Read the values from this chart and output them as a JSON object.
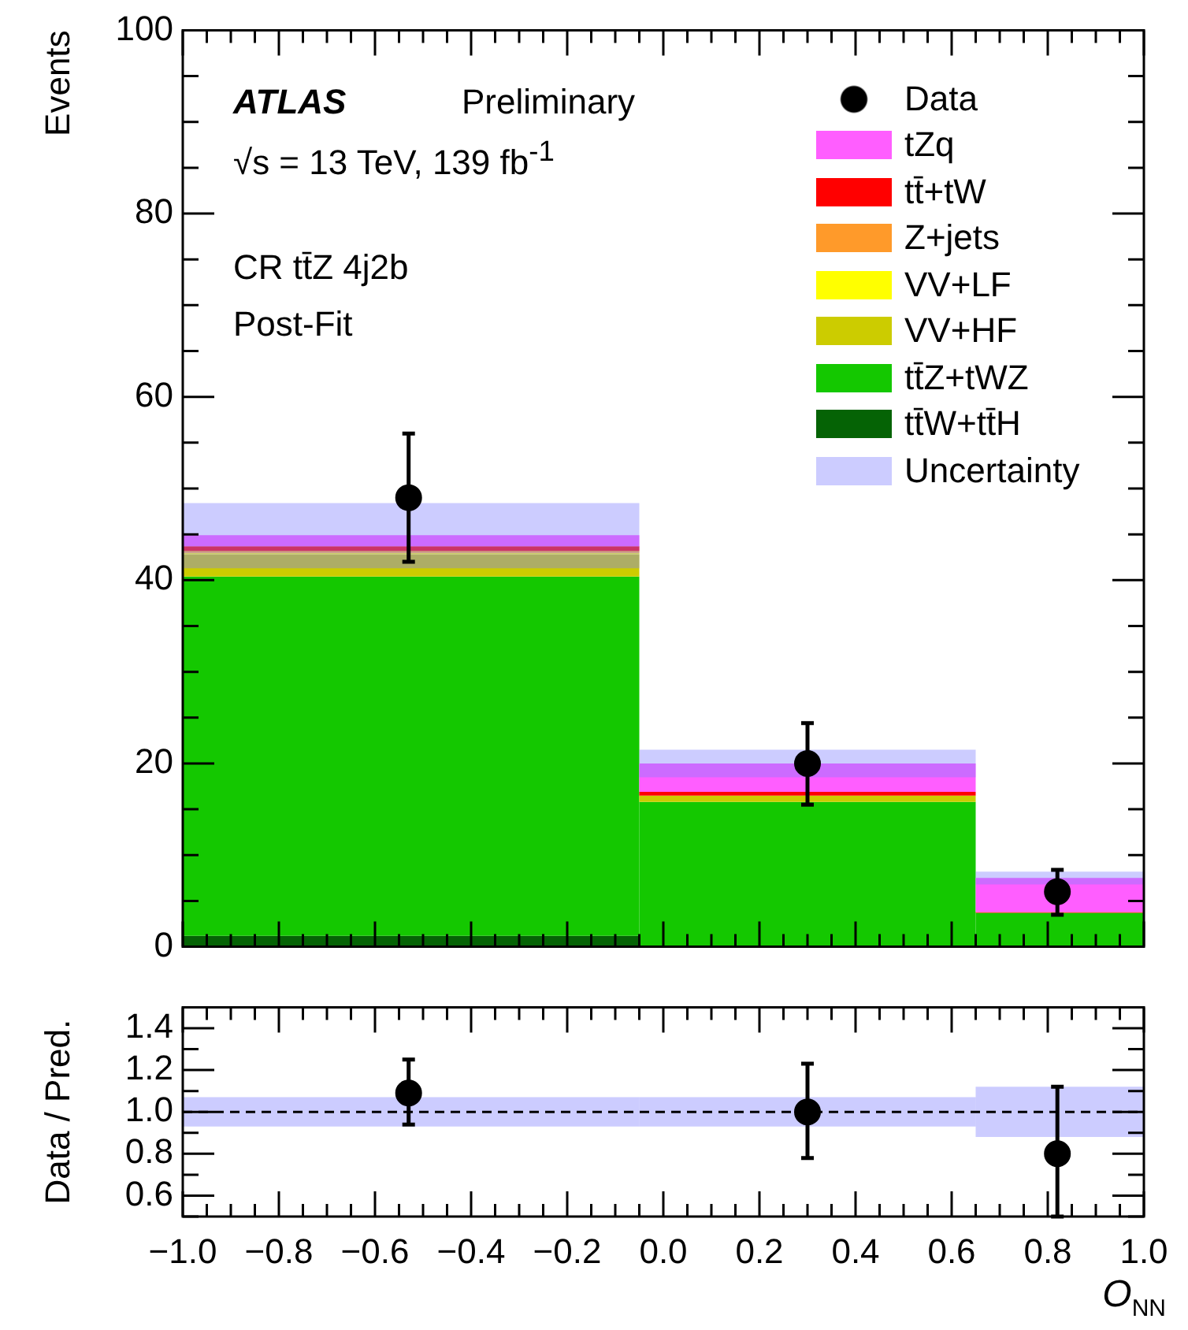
{
  "chart_data": [
    {
      "type": "histogram",
      "ylabel": "Events",
      "bins": [
        -1,
        -0.05,
        0.65,
        1.0
      ],
      "series": [
        {
          "name": "tt̄W+tt̄H",
          "color": "#056305",
          "base": [
            0,
            null,
            null
          ],
          "values": [
            1.2,
            null,
            null
          ]
        },
        {
          "name": "tt̄Z+tWZ",
          "color": "#14c800",
          "base": [
            1.2,
            0,
            0
          ],
          "values": [
            39.2,
            15.8,
            3.7
          ]
        },
        {
          "name": "VV+HF",
          "color": "#cccc00",
          "base": [
            40.4,
            15.8,
            null
          ],
          "values": [
            2.4,
            0.7,
            null
          ]
        },
        {
          "name": "VV+LF",
          "color": "#ffff00",
          "base": [
            42.8,
            null,
            null
          ],
          "values": [
            0.2,
            null,
            null
          ]
        },
        {
          "name": "Z+jets",
          "color": "#ff9a2a",
          "base": [
            43.0,
            null,
            null
          ],
          "values": [
            0.2,
            null,
            null
          ]
        },
        {
          "name": "tt̄+tW",
          "color": "#ff0000",
          "base": [
            43.2,
            16.5,
            3.7
          ],
          "values": [
            0.5,
            0.4,
            0.1
          ]
        },
        {
          "name": "tZq",
          "color": "#ff5eff",
          "base": [
            43.7,
            16.9,
            3.8
          ],
          "values": [
            1.2,
            3.1,
            3.7
          ]
        },
        {
          "name": "Uncertainty",
          "color": "#7f7fff",
          "base": [
            41.3,
            18.5,
            6.8
          ],
          "values": [
            7.1,
            3.0,
            1.4
          ]
        },
        {
          "name": "Data",
          "type": "scatter",
          "color": "#000000",
          "x": [
            -0.53,
            0.3,
            0.82
          ],
          "values": [
            49,
            20,
            6
          ],
          "errors": [
            [
              42,
              56
            ],
            [
              15.5,
              24.4
            ],
            [
              3.5,
              8.4
            ]
          ]
        }
      ],
      "xlim": [
        -1,
        1
      ],
      "xticks": [
        -1,
        -0.8,
        -0.6,
        -0.4,
        -0.2,
        0,
        0.2,
        0.4,
        0.6,
        0.8,
        1
      ],
      "ylim": [
        0,
        100
      ],
      "yticks": [
        0,
        20,
        40,
        60,
        80,
        100
      ],
      "tick_labels": "y",
      "legend": "top right",
      "grid": false,
      "annotations": [
        "ATLAS",
        "Preliminary",
        "√s = 13 TeV, 139 fb$^{-1}$",
        "CR tt̄Z 4j2b",
        "Post-Fit"
      ]
    },
    {
      "type": "histogram",
      "ylabel": "Data / Pred.",
      "xlabel": "O$_{NN}$",
      "bins": [
        -1,
        -0.05,
        0.65,
        1.0
      ],
      "series": [
        {
          "color": "#7f7fff",
          "base": [
            0.93,
            0.93,
            0.88
          ],
          "values": [
            0.14,
            0.14,
            0.24
          ]
        },
        {
          "type": "scatter",
          "color": "#000000",
          "x": [
            -0.53,
            0.3,
            0.82
          ],
          "values": [
            1.09,
            1.0,
            0.8
          ],
          "errors": [
            [
              0.94,
              1.25
            ],
            [
              0.78,
              1.23
            ],
            [
              0.5,
              1.12
            ]
          ]
        }
      ],
      "xlim": [
        -1,
        1
      ],
      "xticks": [
        {
          "value": -1,
          "label": "−1.0"
        },
        {
          "value": -0.8,
          "label": "−0.8"
        },
        {
          "value": -0.6,
          "label": "−0.6"
        },
        {
          "value": -0.4,
          "label": "−0.4"
        },
        {
          "value": -0.2,
          "label": "−0.2"
        },
        {
          "value": 0,
          "label": "0.0"
        },
        0.2,
        0.4,
        0.6,
        0.8,
        {
          "value": 1,
          "label": "1.0"
        }
      ],
      "ylim": [
        0.5,
        1.5
      ],
      "yticks": [
        0.6,
        0.8,
        {
          "value": 1,
          "label": "1.0"
        },
        1.2,
        1.4
      ],
      "grid": false,
      "ref_lines": [
        {
          "axis": "y",
          "value": 1,
          "line_style": "dashed",
          "color": "#000000"
        }
      ]
    }
  ]
}
